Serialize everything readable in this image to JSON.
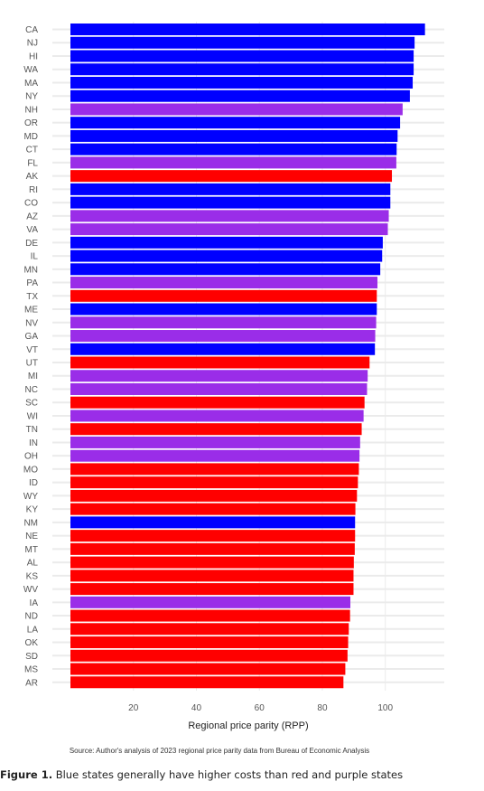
{
  "chart_data": {
    "type": "bar",
    "orientation": "horizontal",
    "xlabel": "Regional price parity (RPP)",
    "xticks": [
      20,
      40,
      60,
      80,
      100
    ],
    "xlim": [
      0,
      116
    ],
    "grid": true,
    "categories": [
      "CA",
      "NJ",
      "HI",
      "WA",
      "MA",
      "NY",
      "NH",
      "OR",
      "MD",
      "CT",
      "FL",
      "AK",
      "RI",
      "CO",
      "AZ",
      "VA",
      "DE",
      "IL",
      "MN",
      "PA",
      "TX",
      "ME",
      "NV",
      "GA",
      "VT",
      "UT",
      "MI",
      "NC",
      "SC",
      "WI",
      "TN",
      "IN",
      "OH",
      "MO",
      "ID",
      "WY",
      "KY",
      "NM",
      "NE",
      "MT",
      "AL",
      "KS",
      "WV",
      "IA",
      "ND",
      "LA",
      "OK",
      "SD",
      "MS",
      "AR"
    ],
    "values": [
      112.6,
      109.3,
      109.0,
      109.0,
      108.7,
      107.8,
      105.5,
      104.7,
      103.9,
      103.6,
      103.5,
      102.1,
      101.6,
      101.6,
      101.1,
      100.8,
      99.2,
      99.0,
      98.4,
      97.5,
      97.3,
      97.3,
      97.1,
      96.8,
      96.7,
      95.0,
      94.4,
      94.2,
      93.4,
      93.1,
      92.5,
      92.0,
      91.8,
      91.6,
      91.3,
      91.0,
      90.5,
      90.4,
      90.4,
      90.3,
      90.0,
      89.9,
      89.9,
      88.9,
      88.8,
      88.4,
      88.2,
      88.0,
      87.3,
      86.7
    ],
    "colors": [
      "#0000ff",
      "#0000ff",
      "#0000ff",
      "#0000ff",
      "#0000ff",
      "#0000ff",
      "#9a2de8",
      "#0000ff",
      "#0000ff",
      "#0000ff",
      "#9a2de8",
      "#ff0000",
      "#0000ff",
      "#0000ff",
      "#9a2de8",
      "#9a2de8",
      "#0000ff",
      "#0000ff",
      "#0000ff",
      "#9a2de8",
      "#ff0000",
      "#0000ff",
      "#9a2de8",
      "#9a2de8",
      "#0000ff",
      "#ff0000",
      "#9a2de8",
      "#9a2de8",
      "#ff0000",
      "#9a2de8",
      "#ff0000",
      "#9a2de8",
      "#9a2de8",
      "#ff0000",
      "#ff0000",
      "#ff0000",
      "#ff0000",
      "#0000ff",
      "#ff0000",
      "#ff0000",
      "#ff0000",
      "#ff0000",
      "#ff0000",
      "#9a2de8",
      "#ff0000",
      "#ff0000",
      "#ff0000",
      "#ff0000",
      "#ff0000",
      "#ff0000"
    ]
  },
  "source": "Source: Author's analysis of 2023 regional price parity data from Bureau of Economic Analysis",
  "caption": {
    "label": "Figure 1.",
    "text": "Blue states generally have higher costs than red and purple states"
  }
}
